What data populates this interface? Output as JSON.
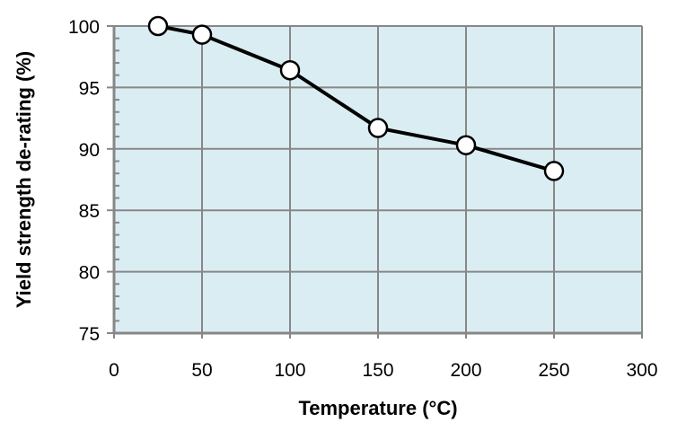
{
  "chart_data": {
    "type": "line",
    "title": "",
    "xlabel": "Temperature (°C)",
    "ylabel": "Yield strength de-rating (%)",
    "xlim": [
      0,
      300
    ],
    "ylim": [
      75,
      100
    ],
    "xticks": [
      0,
      50,
      100,
      150,
      200,
      250,
      300
    ],
    "yticks": [
      75,
      80,
      85,
      90,
      95,
      100
    ],
    "grid": true,
    "plot_background": "#daedf3",
    "grid_color": "#878787",
    "line_color": "#000000",
    "marker": "open-circle",
    "series": [
      {
        "x": [
          25,
          50,
          100,
          150,
          200,
          250
        ],
        "y": [
          100,
          99.3,
          96.4,
          91.7,
          90.3,
          88.2
        ]
      }
    ]
  }
}
